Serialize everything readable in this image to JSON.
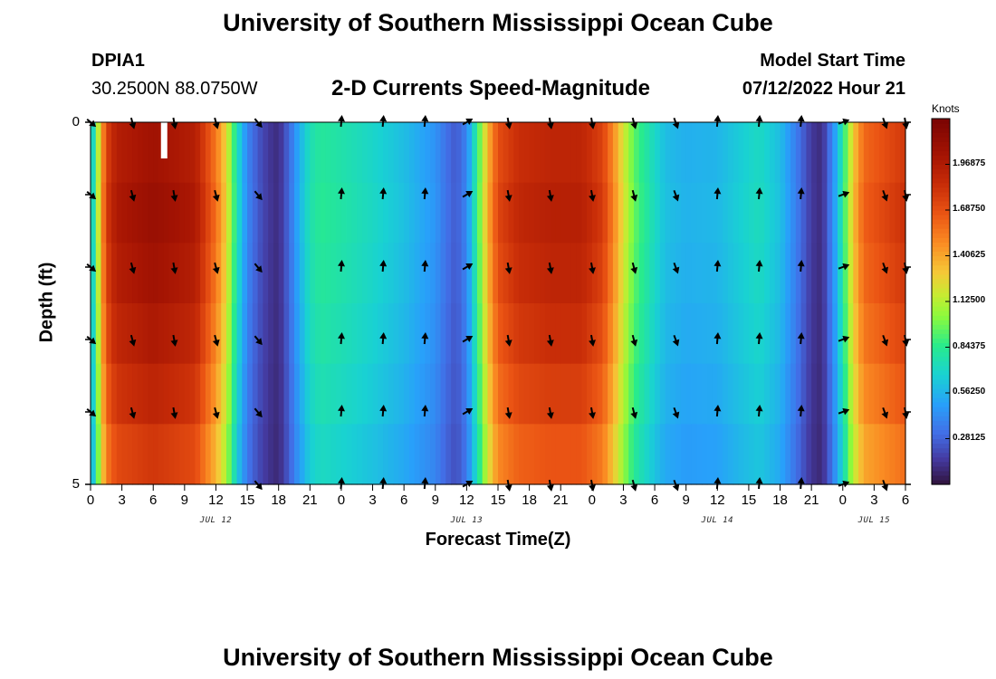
{
  "page": {
    "title": "University of Southern Mississippi Ocean Cube",
    "bottom_title": "University of Southern Mississippi Ocean Cube",
    "station_id": "DPIA1",
    "station_coords": "30.2500N  88.0750W",
    "plot_subtitle": "2-D Currents Speed-Magnitude",
    "model_start_label": "Model Start Time",
    "model_start_value": "07/12/2022 Hour 21"
  },
  "chart_data": {
    "type": "heatmap",
    "title": "2-D Currents Speed-Magnitude",
    "xlabel": "Forecast Time(Z)",
    "ylabel": "Depth (ft)",
    "x_hours_from_jul12_00": [
      0,
      78
    ],
    "x_tick_labels": [
      "0",
      "3",
      "6",
      "9",
      "12",
      "15",
      "18",
      "21",
      "0",
      "3",
      "6",
      "9",
      "12",
      "15",
      "18",
      "21",
      "0",
      "3",
      "6",
      "9",
      "12",
      "15",
      "18",
      "21",
      "0",
      "3",
      "6"
    ],
    "day_labels": [
      {
        "label": "JUL 12",
        "hour": 12
      },
      {
        "label": "JUL 13",
        "hour": 36
      },
      {
        "label": "JUL 14",
        "hour": 60
      },
      {
        "label": "JUL 15",
        "hour": 75
      }
    ],
    "y_ticks": [
      {
        "depth": 0,
        "label": "0"
      },
      {
        "depth": 1,
        "label": ""
      },
      {
        "depth": 2,
        "label": ""
      },
      {
        "depth": 3,
        "label": ""
      },
      {
        "depth": 4,
        "label": ""
      },
      {
        "depth": 5,
        "label": "5"
      }
    ],
    "depth_range_ft": [
      0,
      5
    ],
    "colorbar": {
      "unit": "Knots",
      "range": [
        0,
        2.25
      ],
      "ticks": [
        0.28125,
        0.5625,
        0.84375,
        1.125,
        1.40625,
        1.6875,
        1.96875
      ],
      "tick_labels": [
        "0.28125",
        "0.56250",
        "0.84375",
        "1.12500",
        "1.40625",
        "1.68750",
        "1.96875"
      ]
    },
    "speed_keyframes_knots": [
      [
        0,
        0.5
      ],
      [
        0.5,
        0.95
      ],
      [
        1,
        1.35
      ],
      [
        1.5,
        1.75
      ],
      [
        2.5,
        1.95
      ],
      [
        6,
        2.05
      ],
      [
        10,
        1.95
      ],
      [
        12,
        1.55
      ],
      [
        13,
        1.25
      ],
      [
        14,
        0.75
      ],
      [
        15,
        0.4
      ],
      [
        16,
        0.25
      ],
      [
        17,
        0.15
      ],
      [
        18,
        0.1
      ],
      [
        19,
        0.3
      ],
      [
        20,
        0.55
      ],
      [
        21,
        0.75
      ],
      [
        22,
        0.82
      ],
      [
        24,
        0.78
      ],
      [
        27,
        0.7
      ],
      [
        30,
        0.6
      ],
      [
        33,
        0.45
      ],
      [
        34,
        0.33
      ],
      [
        35,
        0.25
      ],
      [
        36,
        0.4
      ],
      [
        37,
        0.85
      ],
      [
        38,
        1.35
      ],
      [
        39,
        1.7
      ],
      [
        41,
        1.85
      ],
      [
        44,
        1.9
      ],
      [
        47,
        1.9
      ],
      [
        49,
        1.75
      ],
      [
        50,
        1.5
      ],
      [
        51,
        1.2
      ],
      [
        52,
        0.95
      ],
      [
        53,
        0.82
      ],
      [
        55,
        0.6
      ],
      [
        57,
        0.55
      ],
      [
        60,
        0.57
      ],
      [
        62,
        0.65
      ],
      [
        64,
        0.72
      ],
      [
        66,
        0.6
      ],
      [
        67,
        0.45
      ],
      [
        68,
        0.3
      ],
      [
        69,
        0.15
      ],
      [
        70,
        0.1
      ],
      [
        71,
        0.4
      ],
      [
        72,
        0.8
      ],
      [
        73,
        1.3
      ],
      [
        74,
        1.6
      ],
      [
        76,
        1.7
      ],
      [
        78,
        1.8
      ]
    ],
    "depth_speed_factors": [
      1.0,
      1.02,
      1.0,
      0.97,
      0.93,
      0.88
    ],
    "arrow_hours": [
      0,
      4,
      8,
      12,
      16,
      20,
      24,
      28,
      32,
      36,
      40,
      44,
      48,
      52,
      56,
      60,
      64,
      68,
      72,
      76,
      78
    ],
    "arrow_rows_depth_ft": [
      0,
      1,
      2,
      3,
      4,
      5
    ],
    "arrow_directions_deg": [
      130,
      165,
      170,
      165,
      140,
      null,
      5,
      5,
      5,
      60,
      170,
      170,
      170,
      165,
      160,
      5,
      5,
      5,
      70,
      160,
      170
    ],
    "missing_data_bar": {
      "hour": 7,
      "depth_from_ft": 0,
      "depth_to_ft": 0.5
    }
  }
}
